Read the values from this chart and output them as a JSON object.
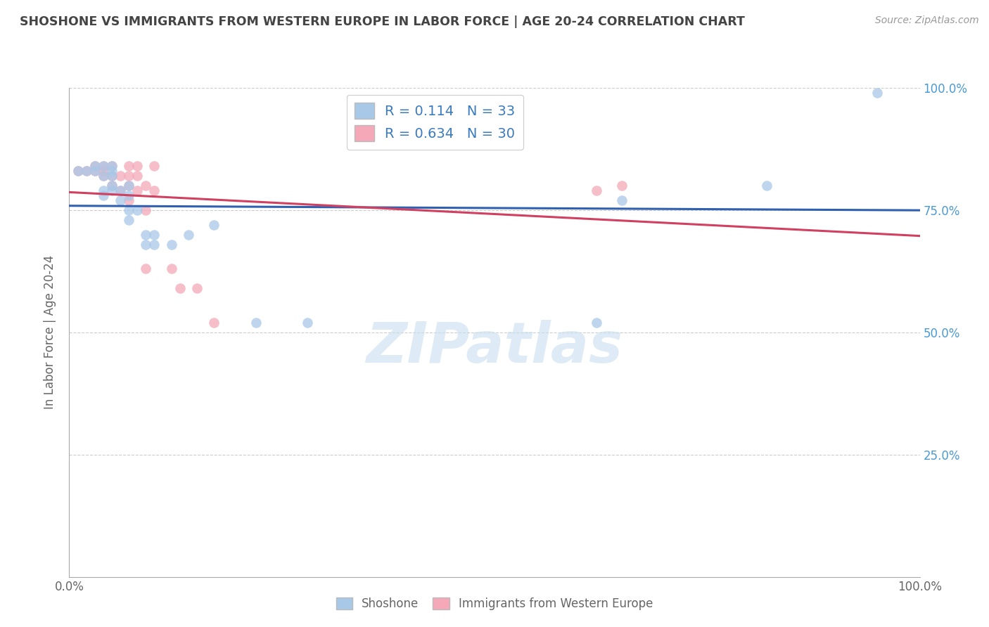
{
  "title": "SHOSHONE VS IMMIGRANTS FROM WESTERN EUROPE IN LABOR FORCE | AGE 20-24 CORRELATION CHART",
  "source": "Source: ZipAtlas.com",
  "ylabel": "In Labor Force | Age 20-24",
  "shoshone_R": 0.114,
  "shoshone_N": 33,
  "immigrants_R": 0.634,
  "immigrants_N": 30,
  "shoshone_color": "#a8c8e8",
  "immigrants_color": "#f4a8b8",
  "shoshone_line_color": "#3060b0",
  "immigrants_line_color": "#d04060",
  "legend_R_N_color": "#3a7abf",
  "title_color": "#444444",
  "watermark_color": "#c8dff0",
  "watermark": "ZIPatlas",
  "xlim": [
    0.0,
    1.0
  ],
  "ylim": [
    0.0,
    1.0
  ],
  "background_color": "#ffffff",
  "grid_color": "#cccccc",
  "shoshone_x": [
    0.01,
    0.02,
    0.03,
    0.03,
    0.04,
    0.04,
    0.04,
    0.04,
    0.05,
    0.05,
    0.05,
    0.05,
    0.05,
    0.06,
    0.06,
    0.07,
    0.07,
    0.07,
    0.07,
    0.08,
    0.09,
    0.09,
    0.1,
    0.1,
    0.12,
    0.14,
    0.17,
    0.22,
    0.28,
    0.62,
    0.65,
    0.82,
    0.95
  ],
  "shoshone_y": [
    0.83,
    0.83,
    0.83,
    0.84,
    0.78,
    0.79,
    0.82,
    0.84,
    0.79,
    0.8,
    0.82,
    0.83,
    0.84,
    0.77,
    0.79,
    0.73,
    0.75,
    0.78,
    0.8,
    0.75,
    0.68,
    0.7,
    0.68,
    0.7,
    0.68,
    0.7,
    0.72,
    0.52,
    0.52,
    0.52,
    0.77,
    0.8,
    0.99
  ],
  "immigrants_x": [
    0.01,
    0.02,
    0.03,
    0.03,
    0.04,
    0.04,
    0.04,
    0.05,
    0.05,
    0.05,
    0.06,
    0.06,
    0.07,
    0.07,
    0.07,
    0.07,
    0.08,
    0.08,
    0.08,
    0.09,
    0.09,
    0.09,
    0.1,
    0.1,
    0.12,
    0.13,
    0.15,
    0.17,
    0.62,
    0.65
  ],
  "immigrants_y": [
    0.83,
    0.83,
    0.83,
    0.84,
    0.82,
    0.83,
    0.84,
    0.8,
    0.82,
    0.84,
    0.79,
    0.82,
    0.77,
    0.8,
    0.82,
    0.84,
    0.79,
    0.82,
    0.84,
    0.63,
    0.75,
    0.8,
    0.79,
    0.84,
    0.63,
    0.59,
    0.59,
    0.52,
    0.79,
    0.8
  ],
  "marker_size": 110
}
